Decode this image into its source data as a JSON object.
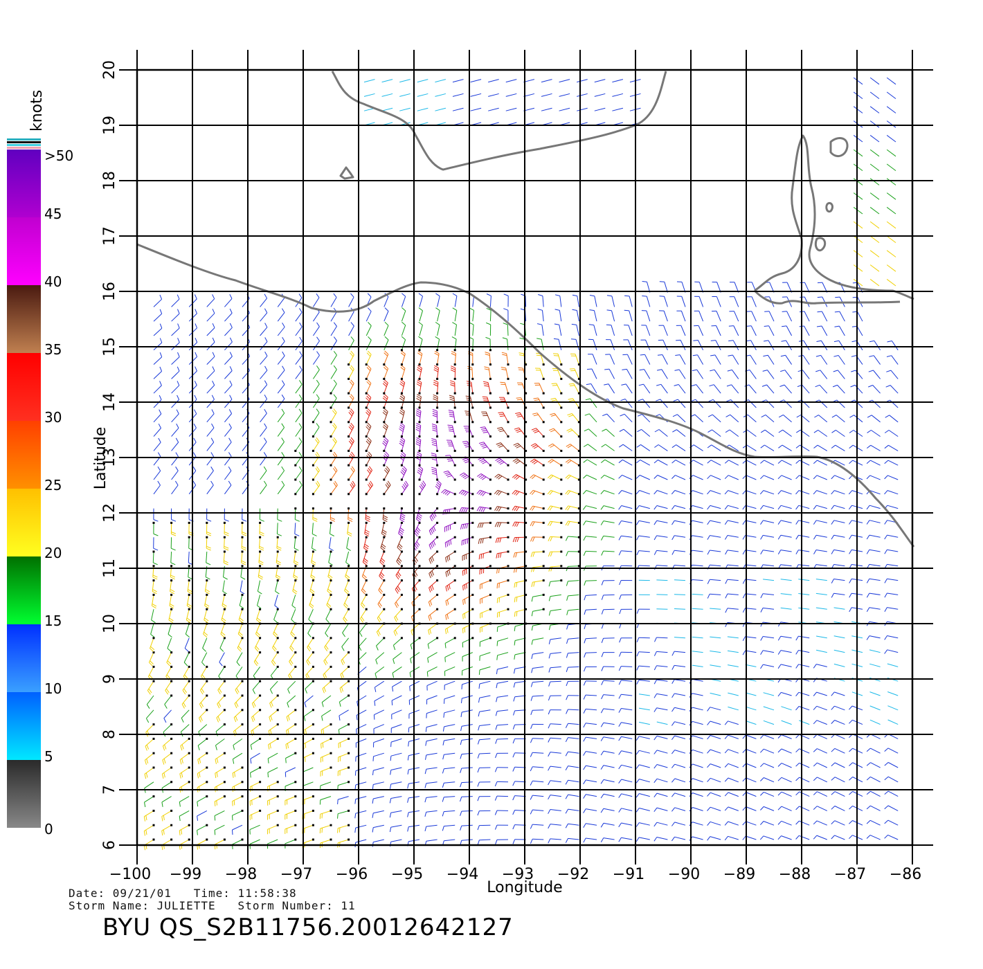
{
  "colorbar": {
    "unit": "knots",
    "labels": [
      "0",
      "5",
      "10",
      "15",
      "20",
      "25",
      "30",
      "35",
      "40",
      "45",
      ">50"
    ],
    "bands": [
      {
        "from": 0,
        "to": 5,
        "top": "#2a2a2a",
        "bottom": "#888888"
      },
      {
        "from": 5,
        "to": 10,
        "top": "#0060ff",
        "bottom": "#00e8ff"
      },
      {
        "from": 10,
        "to": 15,
        "top": "#0030ff",
        "bottom": "#3aa0ff"
      },
      {
        "from": 15,
        "to": 20,
        "top": "#007000",
        "bottom": "#00ff30"
      },
      {
        "from": 20,
        "to": 25,
        "top": "#ffc000",
        "bottom": "#ffff20"
      },
      {
        "from": 25,
        "to": 30,
        "top": "#ff4000",
        "bottom": "#ff9000"
      },
      {
        "from": 30,
        "to": 35,
        "top": "#ff0000",
        "bottom": "#ff3020"
      },
      {
        "from": 35,
        "to": 40,
        "top": "#4a1a10",
        "bottom": "#c08050"
      },
      {
        "from": 40,
        "to": 45,
        "top": "#c000d0",
        "bottom": "#ff00ff"
      },
      {
        "from": 45,
        "to": 50,
        "top": "#6000c0",
        "bottom": "#b000d0"
      }
    ]
  },
  "map": {
    "xlabel": "Longitude",
    "ylabel": "Latitude",
    "x_ticks": [
      "−100",
      "−99",
      "−98",
      "−97",
      "−96",
      "−95",
      "−94",
      "−93",
      "−92",
      "−91",
      "−90",
      "−89",
      "−88",
      "−87",
      "−86"
    ],
    "y_ticks": [
      "6",
      "7",
      "8",
      "9",
      "10",
      "11",
      "12",
      "13",
      "14",
      "15",
      "16",
      "17",
      "18",
      "19",
      "20"
    ],
    "lon_range": [
      -100,
      -86
    ],
    "lat_range": [
      6,
      20
    ],
    "land_color": "#777777",
    "grid_color": "#000000"
  },
  "footer": {
    "date_line": "Date: 09/21/01   Time: 11:58:38",
    "storm_line": "Storm Name: JULIETTE   Storm Number: 11",
    "product_id": "BYU QS_S2B11756.20012642127"
  }
}
